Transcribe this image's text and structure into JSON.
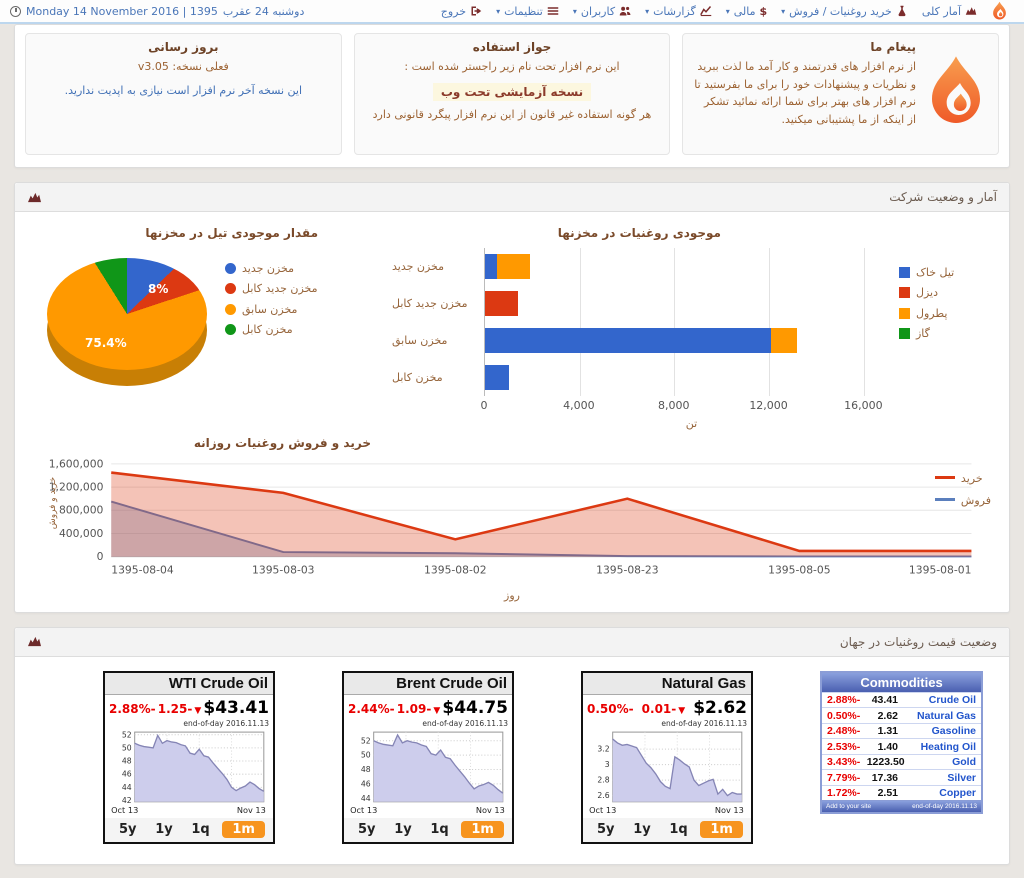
{
  "navbar": {
    "date_en": "Monday 14 November 2016 | 1395",
    "date_fa": "دوشنبه 24 عقرب",
    "items": [
      {
        "label": "آمار کلی",
        "icon": "stats-icon",
        "caret": false
      },
      {
        "label": "خرید روغنیات / فروش",
        "icon": "flask-icon",
        "caret": true
      },
      {
        "label": "مالی",
        "icon": "dollar-icon",
        "caret": true
      },
      {
        "label": "گزارشات",
        "icon": "reports-icon",
        "caret": true
      },
      {
        "label": "کاربران",
        "icon": "users-icon",
        "caret": true
      },
      {
        "label": "تنظیمات",
        "icon": "settings-icon",
        "caret": true
      },
      {
        "label": "خروج",
        "icon": "logout-icon",
        "caret": false
      }
    ]
  },
  "cards": {
    "update": {
      "title": "بروز رسانی",
      "version_line": "فعلی نسخه: v3.05",
      "note": "این نسخه آخر نرم افزار است نیازی به اپدیت ندارید."
    },
    "license": {
      "title": "جواز استفاده",
      "line1": "این نرم افزار تحت نام زیر راجستر شده است :",
      "highlight": "نسخه آزمایشی تحت وب",
      "line2": "هر گونه استفاده غیر قانون از این نرم افزار پیگرد قانونی دارد"
    },
    "message": {
      "title": "پیغام ما",
      "body": "از نرم افزار های قدرتمند و کار آمد ما لذت ببرید و نظریات و پیشنهادات خود را برای ما بفرستید تا نرم افزار های بهتر برای شما ارائه نمائید تشکر از اینکه از ما پشتیبانی میکنید."
    }
  },
  "sections": {
    "stats_title": "آمار و وضعیت شرکت",
    "prices_title": "وضعیت قیمت روغنیات در جهان"
  },
  "charts": {
    "pie": {
      "type": "pie",
      "title": "مقدار موجودی تیل در مخزنها",
      "slices": [
        {
          "label": "مخزن جدید",
          "value": 10.0,
          "color": "#3366cc",
          "display": ""
        },
        {
          "label": "مخزن جدید کابل",
          "value": 8.0,
          "color": "#dc3912",
          "display": "8%"
        },
        {
          "label": "مخزن سابق",
          "value": 75.4,
          "color": "#ff9900",
          "display": "75.4%"
        },
        {
          "label": "مخزن کابل",
          "value": 6.6,
          "color": "#109618",
          "display": ""
        }
      ]
    },
    "bars": {
      "type": "bar",
      "title": "موجودی روغنیات در مخزنها",
      "xlabel": "تن",
      "xticks": [
        "0",
        "4,000",
        "8,000",
        "12,000",
        "16,000"
      ],
      "tick_interval": 4000,
      "xmax": 17500,
      "legend": [
        {
          "label": "تیل خاک",
          "color": "#3366cc"
        },
        {
          "label": "دیزل",
          "color": "#dc3912"
        },
        {
          "label": "پطرول",
          "color": "#ff9900"
        },
        {
          "label": "گاز",
          "color": "#109618"
        }
      ],
      "rows": [
        {
          "label": "مخزن جدید",
          "segments": [
            {
              "color": "#3366cc",
              "value": 500
            },
            {
              "color": "#ff9900",
              "value": 1400
            }
          ]
        },
        {
          "label": "مخزن جدید کابل",
          "segments": [
            {
              "color": "#dc3912",
              "value": 1400
            }
          ]
        },
        {
          "label": "مخزن سابق",
          "segments": [
            {
              "color": "#3366cc",
              "value": 12100
            },
            {
              "color": "#ff9900",
              "value": 1100
            }
          ]
        },
        {
          "label": "مخزن کابل",
          "segments": [
            {
              "color": "#3366cc",
              "value": 1000
            }
          ]
        }
      ]
    },
    "area": {
      "type": "area",
      "title": "خرید و فروش روغنیات روزانه",
      "ylabel": "خرید و فروش",
      "xlabel": "روز",
      "ymax": 1600000,
      "ytick_vals": [
        1600000,
        1200000,
        800000,
        400000,
        0
      ],
      "ytick_labels": [
        "1,600,000",
        "1,200,000",
        "800,000",
        "400,000",
        "0"
      ],
      "x": [
        "1395-08-04",
        "1395-08-03",
        "1395-08-02",
        "1395-08-23",
        "1395-08-05",
        "1395-08-01"
      ],
      "series": [
        {
          "name": "خرید",
          "color": "#dc3912",
          "fill": "rgba(220,57,18,0.30)",
          "values": [
            1450000,
            1100000,
            300000,
            1000000,
            100000,
            100000
          ]
        },
        {
          "name": "فروش",
          "color": "#5b7fbd",
          "fill": "rgba(107,142,198,0.38)",
          "values": [
            950000,
            80000,
            60000,
            10000,
            5000,
            5000
          ]
        }
      ]
    }
  },
  "widgets": [
    {
      "title": "WTI Crude Oil",
      "pct": "2.88%-",
      "chg": "1.25-",
      "price": "$43.41",
      "eod": "end-of-day 2016.11.13",
      "x0": "Oct 13",
      "x1": "Nov 13",
      "ymin": 41.8,
      "ymax": 52.4,
      "yticks": [
        52,
        50,
        48,
        46,
        44,
        42
      ],
      "points": [
        50.7,
        50.4,
        50.2,
        50.1,
        50.0,
        51.9,
        50.7,
        51.1,
        50.9,
        50.8,
        50.5,
        50.3,
        49.2,
        49.0,
        49.8,
        48.8,
        48.6,
        47.7,
        46.9,
        46.1,
        45.2,
        44.0,
        43.5,
        43.9,
        44.2,
        44.8,
        44.4,
        43.8,
        43.4
      ],
      "buttons": [
        "5y",
        "1y",
        "1q",
        "1m"
      ],
      "active_button": "1m"
    },
    {
      "title": "Brent Crude Oil",
      "pct": "2.44%-",
      "chg": "1.09-",
      "price": "$44.75",
      "eod": "end-of-day 2016.11.13",
      "x0": "Oct 13",
      "x1": "Nov 13",
      "ymin": 43.5,
      "ymax": 53.2,
      "yticks": [
        52,
        50,
        48,
        46,
        44
      ],
      "points": [
        52.0,
        51.7,
        51.5,
        51.4,
        51.3,
        52.8,
        51.7,
        52.0,
        51.8,
        51.7,
        51.4,
        51.2,
        50.2,
        50.0,
        50.7,
        49.7,
        49.5,
        48.6,
        47.8,
        47.0,
        46.1,
        45.3,
        45.7,
        45.9,
        46.2,
        45.8,
        45.2,
        44.7
      ],
      "buttons": [
        "5y",
        "1y",
        "1q",
        "1m"
      ],
      "active_button": "1m"
    },
    {
      "title": "Natural Gas",
      "pct": "0.50%-",
      "chg": "0.01-",
      "price": "$2.62",
      "eod": "end-of-day 2016.11.13",
      "x0": "Oct 13",
      "x1": "Nov 13",
      "ymin": 2.52,
      "ymax": 3.42,
      "yticks": [
        3.2,
        3.0,
        2.8,
        2.6
      ],
      "points": [
        3.33,
        3.28,
        3.25,
        3.26,
        3.24,
        3.22,
        3.12,
        3.02,
        2.96,
        2.88,
        2.78,
        2.72,
        2.69,
        3.1,
        3.06,
        3.01,
        2.97,
        2.8,
        2.73,
        2.76,
        2.79,
        2.81,
        2.62,
        2.68,
        2.6,
        2.64,
        2.62,
        2.62
      ],
      "buttons": [
        "5y",
        "1y",
        "1q",
        "1m"
      ],
      "active_button": "1m"
    }
  ],
  "commodities": {
    "title": "Commodities",
    "rows": [
      {
        "pct": "2.88%-",
        "value": "43.41",
        "name": "Crude Oil"
      },
      {
        "pct": "0.50%-",
        "value": "2.62",
        "name": "Natural Gas"
      },
      {
        "pct": "2.48%-",
        "value": "1.31",
        "name": "Gasoline"
      },
      {
        "pct": "2.53%-",
        "value": "1.40",
        "name": "Heating Oil"
      },
      {
        "pct": "3.43%-",
        "value": "1223.50",
        "name": "Gold"
      },
      {
        "pct": "7.79%-",
        "value": "17.36",
        "name": "Silver"
      },
      {
        "pct": "1.72%-",
        "value": "2.51",
        "name": "Copper"
      }
    ],
    "footer_left": "Add to your site",
    "footer_right": "end-of-day 2016.11.13"
  },
  "colors": {
    "brand_red": "#7b2c2c",
    "link_blue": "#4a76b8",
    "accent_orange": "#f7941e",
    "google_blue": "#3366cc",
    "google_red": "#dc3912",
    "google_orange": "#ff9900",
    "google_green": "#109618"
  }
}
